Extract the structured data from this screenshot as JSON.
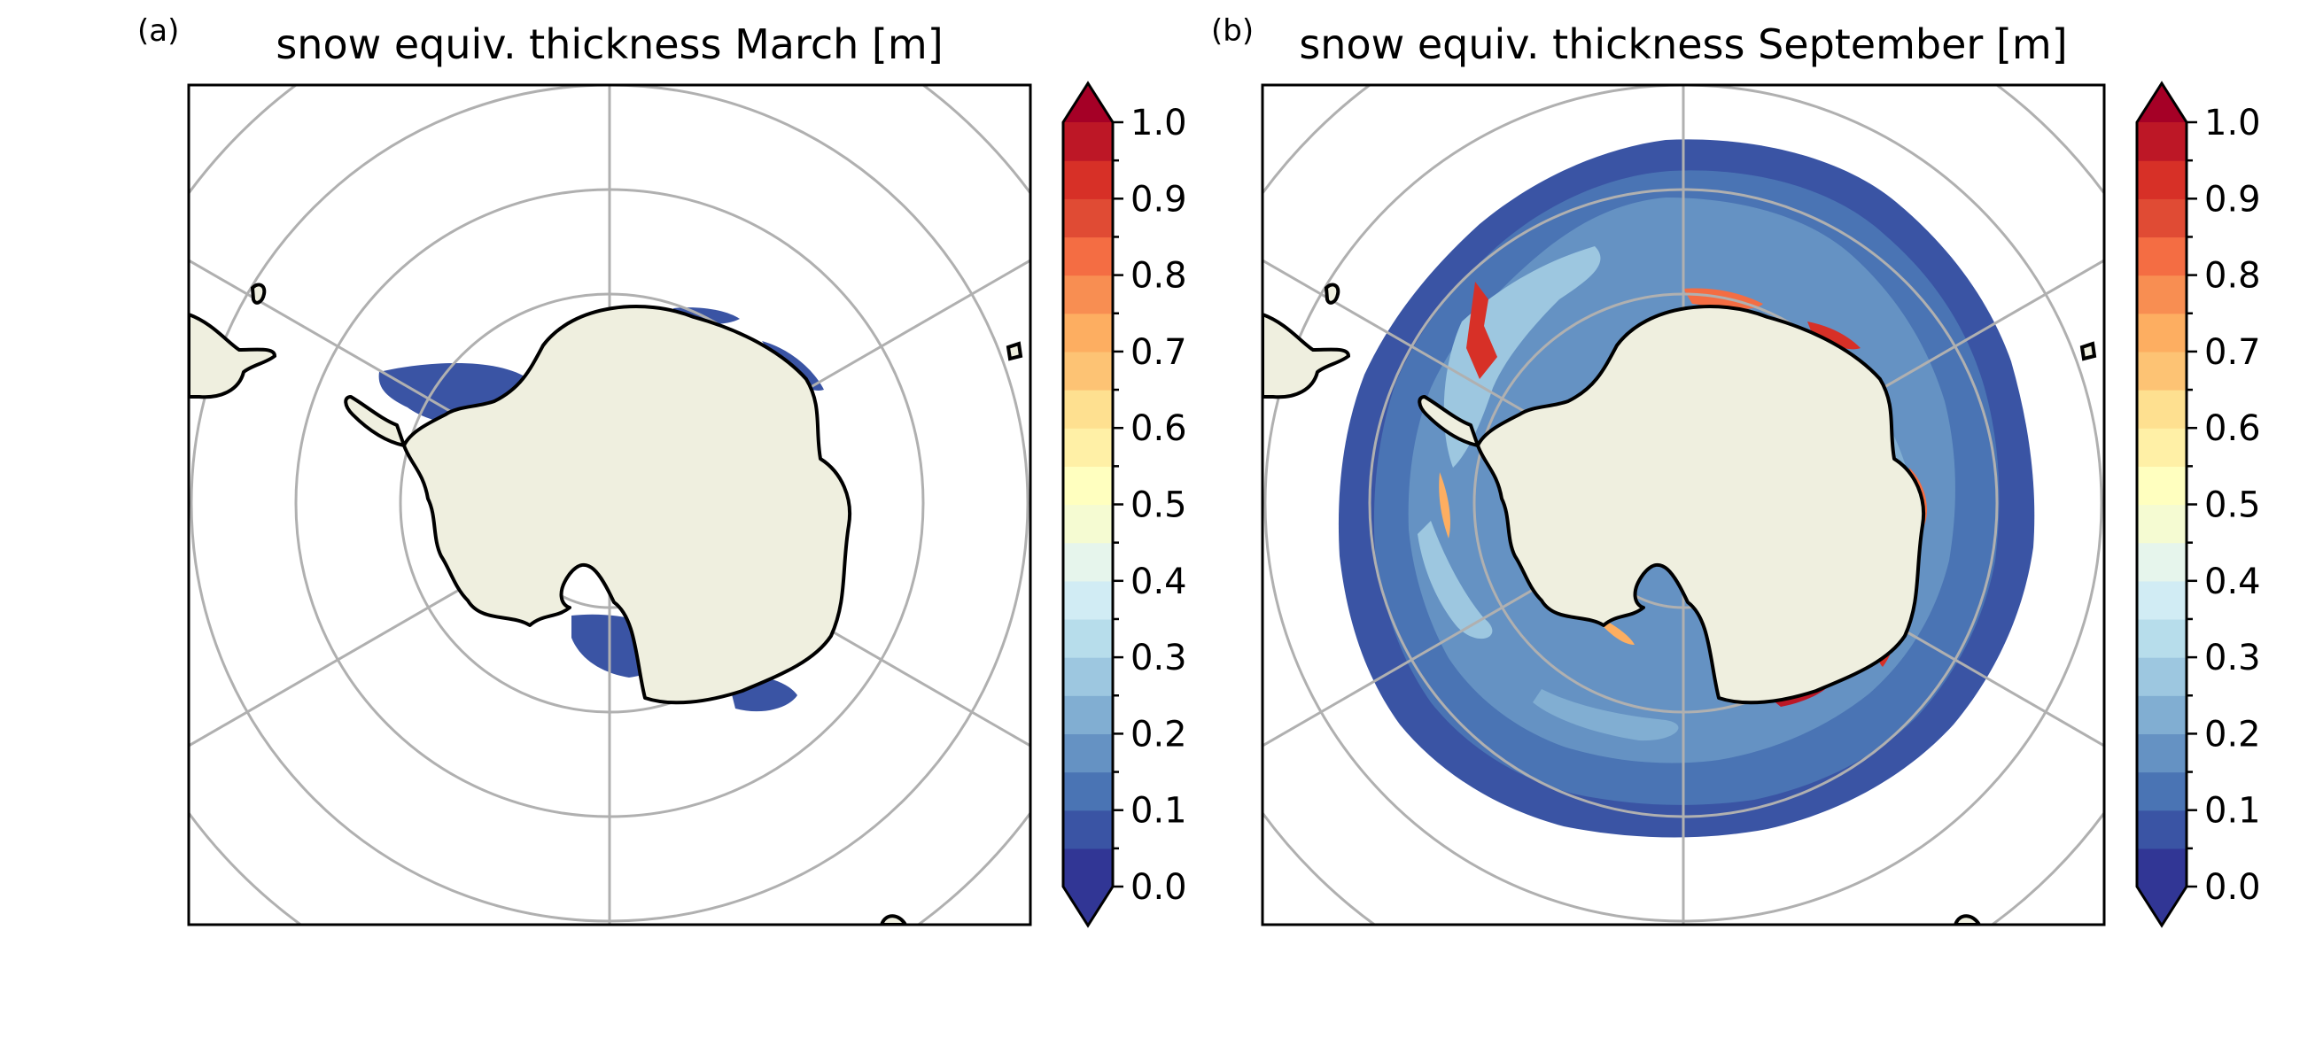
{
  "figure": {
    "panels": [
      {
        "id": "a",
        "panel_label": "(a)",
        "title": "snow equiv. thickness March [m]",
        "month": "March",
        "sea_ice_extent": "sparse"
      },
      {
        "id": "b",
        "panel_label": "(b)",
        "title": "snow equiv. thickness September [m]",
        "month": "September",
        "sea_ice_extent": "full"
      }
    ],
    "colorbar": {
      "cmap": "RdYlBu_r",
      "min": 0.0,
      "max": 1.0,
      "extend": "both",
      "levels": 20,
      "tick_labels": [
        "0.0",
        "0.1",
        "0.2",
        "0.3",
        "0.4",
        "0.5",
        "0.6",
        "0.7",
        "0.8",
        "0.9",
        "1.0"
      ],
      "colors": [
        "#313695",
        "#3a54a4",
        "#4a74b4",
        "#6592c3",
        "#81aed2",
        "#9dc7e0",
        "#b7ddeb",
        "#d1ecf4",
        "#e6f5ec",
        "#f5fbd2",
        "#ffffbf",
        "#fff0a6",
        "#fee090",
        "#fdc374",
        "#fdae61",
        "#f88e52",
        "#f46d43",
        "#e04b34",
        "#d73027",
        "#bd1726",
        "#a50026"
      ],
      "over_color": "#a50026",
      "under_color": "#313695"
    },
    "map_style": {
      "land_color": "#efefdf",
      "coast_color": "#000000",
      "grid_color": "#b0b0b0"
    }
  }
}
